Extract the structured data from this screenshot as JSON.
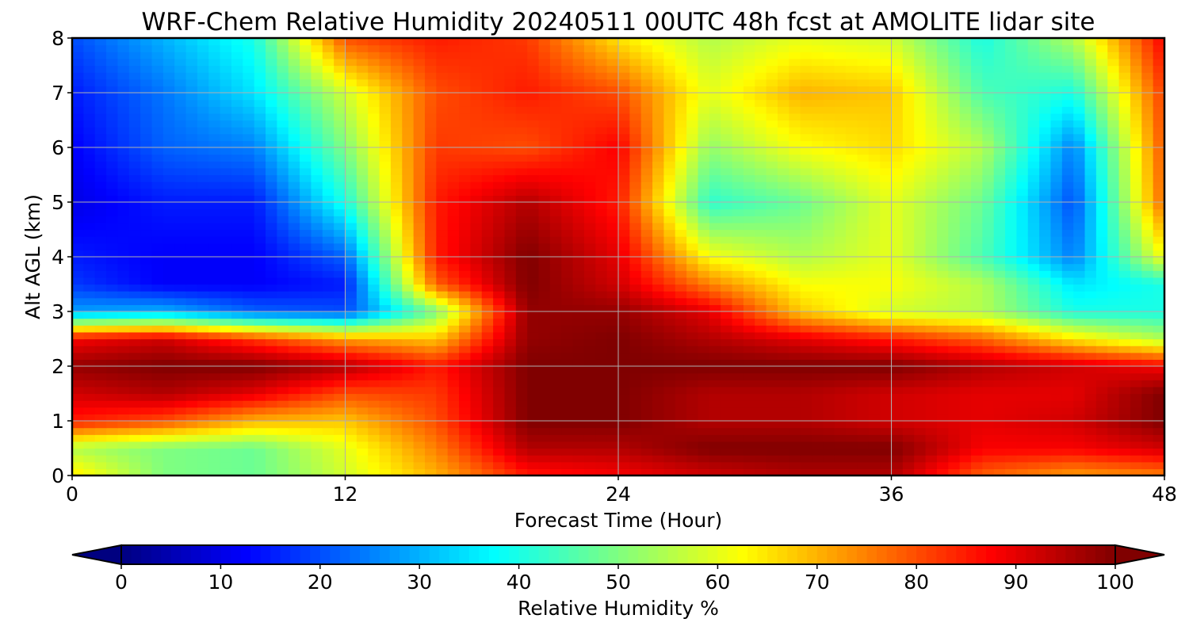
{
  "chart_data": {
    "type": "heatmap",
    "title": "WRF-Chem Relative Humidity 20240511 00UTC 48h fcst at AMOLITE lidar site",
    "xlabel": "Forecast Time (Hour)",
    "ylabel": "Alt AGL (km)",
    "xlim": [
      0,
      48
    ],
    "ylim": [
      0,
      8
    ],
    "xticks": [
      "0",
      "12",
      "24",
      "36",
      "48"
    ],
    "yticks": [
      "0",
      "1",
      "2",
      "3",
      "4",
      "5",
      "6",
      "7",
      "8"
    ],
    "grid": true,
    "colorscale": "jet",
    "colorbar": {
      "label": "Relative Humidity %",
      "ticks": [
        "0",
        "10",
        "20",
        "30",
        "40",
        "50",
        "60",
        "70",
        "80",
        "90",
        "100"
      ],
      "range": [
        0,
        100
      ],
      "extend": "both"
    },
    "x": [
      0,
      4,
      8,
      12,
      16,
      20,
      24,
      28,
      32,
      36,
      40,
      44,
      48
    ],
    "y": [
      0,
      0.5,
      1,
      1.5,
      2,
      2.5,
      3,
      3.5,
      4,
      5,
      6,
      7,
      8
    ],
    "z": [
      [
        65,
        50,
        48,
        58,
        70,
        85,
        88,
        92,
        95,
        95,
        78,
        72,
        75
      ],
      [
        55,
        50,
        48,
        60,
        75,
        95,
        95,
        100,
        100,
        100,
        88,
        88,
        92
      ],
      [
        85,
        80,
        70,
        68,
        80,
        100,
        100,
        95,
        95,
        92,
        90,
        92,
        100
      ],
      [
        92,
        95,
        90,
        80,
        82,
        100,
        100,
        95,
        95,
        92,
        90,
        90,
        100
      ],
      [
        98,
        100,
        100,
        95,
        85,
        100,
        100,
        100,
        100,
        100,
        95,
        92,
        88
      ],
      [
        88,
        92,
        82,
        72,
        68,
        98,
        100,
        95,
        90,
        85,
        78,
        65,
        55
      ],
      [
        28,
        30,
        22,
        20,
        50,
        98,
        98,
        90,
        68,
        58,
        55,
        40,
        40
      ],
      [
        18,
        12,
        12,
        15,
        78,
        100,
        92,
        75,
        62,
        62,
        55,
        35,
        40
      ],
      [
        15,
        12,
        12,
        22,
        85,
        100,
        90,
        62,
        55,
        60,
        45,
        25,
        62
      ],
      [
        10,
        15,
        15,
        40,
        85,
        95,
        85,
        42,
        48,
        60,
        48,
        20,
        78
      ],
      [
        12,
        22,
        25,
        50,
        82,
        80,
        88,
        52,
        62,
        66,
        55,
        25,
        80
      ],
      [
        15,
        24,
        35,
        58,
        80,
        85,
        80,
        60,
        70,
        68,
        45,
        40,
        82
      ],
      [
        20,
        30,
        40,
        80,
        85,
        82,
        65,
        55,
        60,
        58,
        40,
        55,
        88
      ]
    ]
  }
}
